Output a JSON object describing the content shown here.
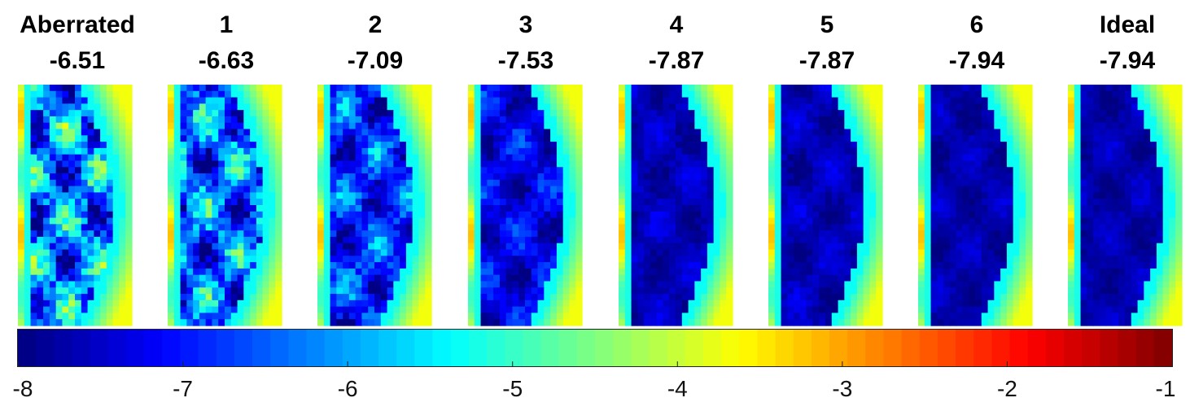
{
  "chart_data": {
    "type": "heatmap",
    "panels": [
      {
        "title": "Aberrated",
        "value": "-6.51",
        "mean": -6.51
      },
      {
        "title": "1",
        "value": "-6.63",
        "mean": -6.63
      },
      {
        "title": "2",
        "value": "-7.09",
        "mean": -7.09
      },
      {
        "title": "3",
        "value": "-7.53",
        "mean": -7.53
      },
      {
        "title": "4",
        "value": "-7.87",
        "mean": -7.87
      },
      {
        "title": "5",
        "value": "-7.87",
        "mean": -7.87
      },
      {
        "title": "6",
        "value": "-7.94",
        "mean": -7.94
      },
      {
        "title": "Ideal",
        "value": "-7.94",
        "mean": -7.94
      }
    ],
    "colorbar": {
      "colormap": "jet",
      "range": [
        -8,
        -1
      ],
      "ticks": [
        "-8",
        "-7",
        "-6",
        "-5",
        "-4",
        "-3",
        "-2",
        "-1"
      ]
    }
  }
}
